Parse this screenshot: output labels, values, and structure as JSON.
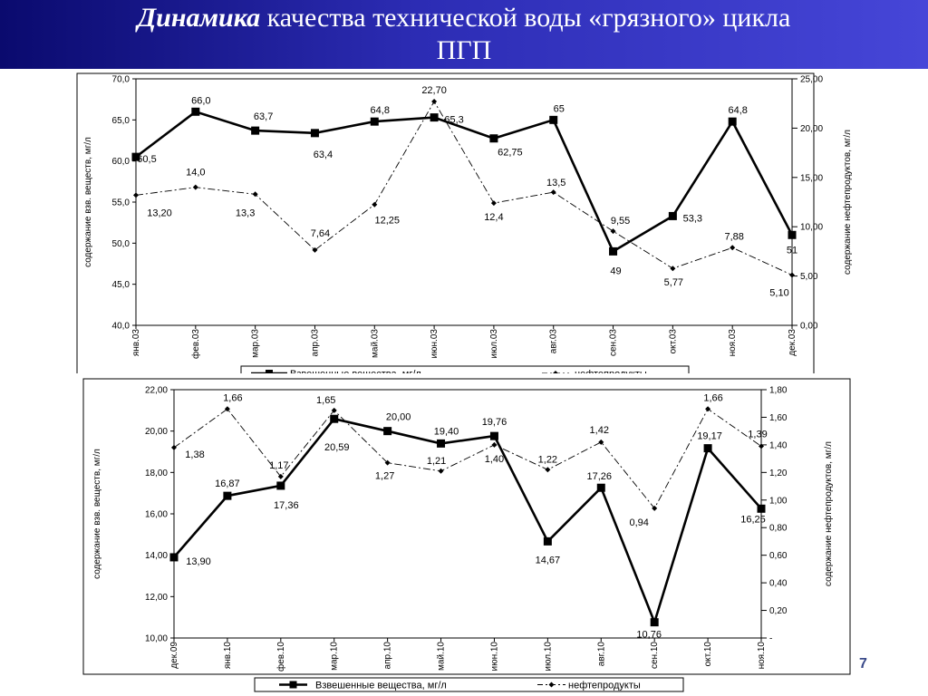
{
  "slide": {
    "title_bold": "Динамика",
    "title_rest": " качества технической воды «грязного» цикла",
    "title_line2": "ПГП",
    "page_number": "7"
  },
  "chart_data": [
    {
      "type": "line",
      "categories": [
        "янв.03",
        "фев.03",
        "мар.03",
        "апр.03",
        "май.03",
        "июн.03",
        "июл.03",
        "авг.03",
        "сен.03",
        "окт.03",
        "ноя.03",
        "дек.03"
      ],
      "ylabel": "содержание взв. веществ, мг/л",
      "y2label": "содержание нефтепродуктов, мг/л",
      "ylim": [
        40,
        70
      ],
      "y2lim": [
        0,
        25
      ],
      "yticks": [
        "40,0",
        "45,0",
        "50,0",
        "55,0",
        "60,0",
        "65,0",
        "70,0"
      ],
      "y2ticks": [
        "0,00",
        "5,00",
        "10,00",
        "15,00",
        "20,00",
        "25,00"
      ],
      "legend_position": "bottom",
      "series": [
        {
          "name": "Взвешенные вещества, мг/л",
          "axis": "left",
          "style": "solid-square",
          "values": [
            60.5,
            66.0,
            63.7,
            63.4,
            64.8,
            65.3,
            62.75,
            65,
            49,
            53.3,
            64.8,
            51
          ],
          "labels": [
            "60,5",
            "66,0",
            "63,7",
            "63,4",
            "64,8",
            "65,3",
            "62,75",
            "65",
            "49",
            "53,3",
            "64,8",
            "51"
          ]
        },
        {
          "name": "нефтепродукты",
          "axis": "right",
          "style": "dashdot-diamond",
          "values": [
            13.2,
            14.0,
            13.3,
            7.64,
            12.25,
            22.7,
            12.4,
            13.5,
            9.55,
            5.77,
            7.88,
            5.1
          ],
          "labels": [
            "13,20",
            "14,0",
            "13,3",
            "7,64",
            "12,25",
            "22,70",
            "12,4",
            "13,5",
            "9,55",
            "5,77",
            "7,88",
            "5,10"
          ]
        }
      ]
    },
    {
      "type": "line",
      "categories": [
        "дек.09",
        "янв.10",
        "фев.10",
        "мар.10",
        "апр.10",
        "май.10",
        "июн.10",
        "июл.10",
        "авг.10",
        "сен.10",
        "окт.10",
        "ноя.10"
      ],
      "ylabel": "содержание взв. веществ, мг/л",
      "y2label": "содержание нефтепродуктов, мг/л",
      "ylim": [
        10,
        22
      ],
      "y2lim": [
        0,
        1.8
      ],
      "yticks": [
        "10,00",
        "12,00",
        "14,00",
        "16,00",
        "18,00",
        "20,00",
        "22,00"
      ],
      "y2ticks": [
        "-",
        "0,20",
        "0,40",
        "0,60",
        "0,80",
        "1,00",
        "1,20",
        "1,40",
        "1,60",
        "1,80"
      ],
      "legend_position": "bottom",
      "series": [
        {
          "name": "Взвешенные вещества, мг/л",
          "axis": "left",
          "style": "solid-square",
          "values": [
            13.9,
            16.87,
            17.36,
            20.59,
            20.0,
            19.4,
            19.76,
            14.67,
            17.26,
            10.76,
            19.17,
            16.25
          ],
          "labels": [
            "13,90",
            "16,87",
            "17,36",
            "20,59",
            "20,00",
            "19,40",
            "19,76",
            "14,67",
            "17,26",
            "10,76",
            "19,17",
            "16,25"
          ]
        },
        {
          "name": "нефтепродукты",
          "axis": "right",
          "style": "dashdot-diamond",
          "values": [
            1.38,
            1.66,
            1.17,
            1.65,
            1.27,
            1.21,
            1.4,
            1.22,
            1.42,
            0.94,
            1.66,
            1.39
          ],
          "labels": [
            "1,38",
            "1,66",
            "1,17",
            "1,65",
            "1,27",
            "1,21",
            "1,40",
            "1,22",
            "1,42",
            "0,94",
            "1,66",
            "1,39"
          ]
        }
      ]
    }
  ]
}
